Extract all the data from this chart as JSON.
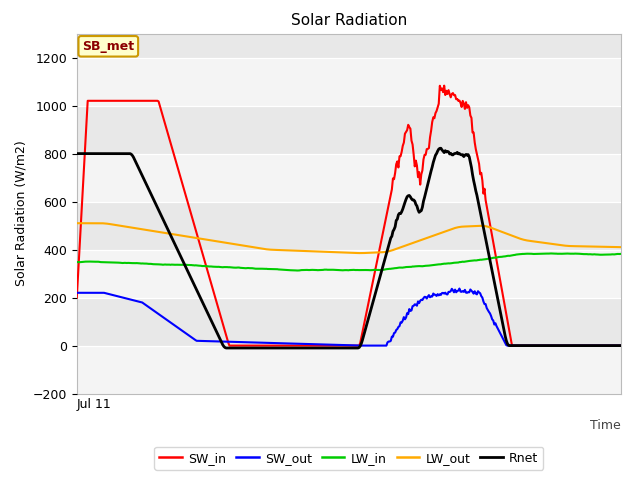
{
  "title": "Solar Radiation",
  "xlabel": "Time",
  "ylabel": "Solar Radiation (W/m2)",
  "ylim": [
    -200,
    1300
  ],
  "yticks": [
    -200,
    0,
    200,
    400,
    600,
    800,
    1000,
    1200
  ],
  "x_label_text": "Jul 11",
  "annotation_label": "SB_met",
  "plot_bg_color": "#e8e8e8",
  "fig_bg_color": "#ffffff",
  "legend": {
    "SW_in": {
      "color": "#ff0000"
    },
    "SW_out": {
      "color": "#0000ff"
    },
    "LW_in": {
      "color": "#00cc00"
    },
    "LW_out": {
      "color": "#ffaa00"
    },
    "Rnet": {
      "color": "#000000"
    }
  }
}
